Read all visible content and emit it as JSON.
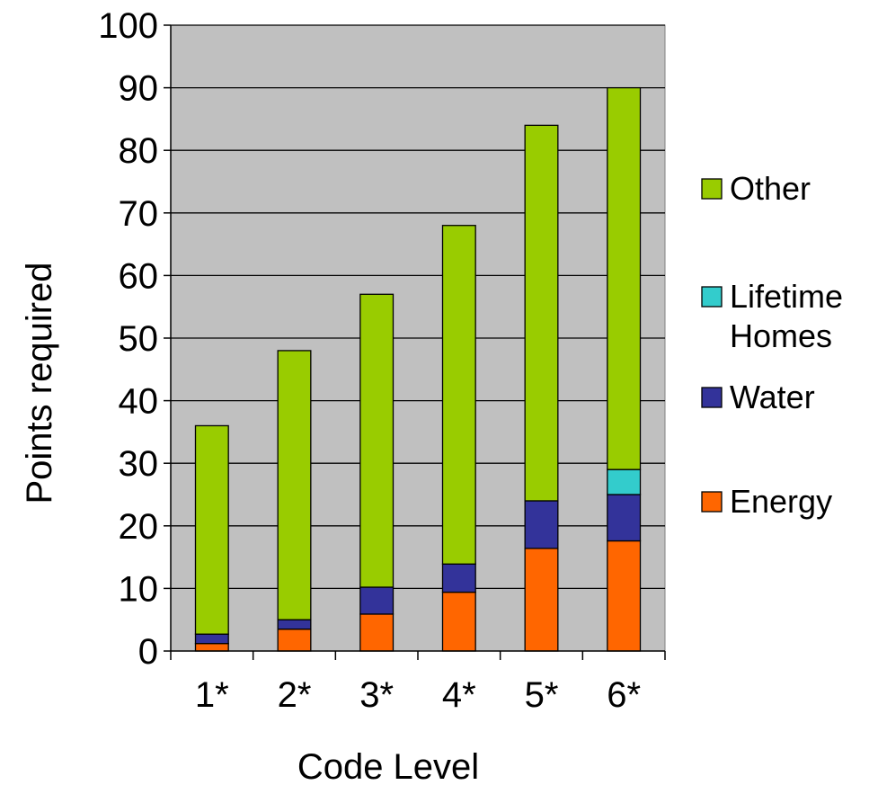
{
  "chart_data": {
    "type": "bar",
    "stacked": true,
    "categories": [
      "1*",
      "2*",
      "3*",
      "4*",
      "5*",
      "6*"
    ],
    "series": [
      {
        "name": "Energy",
        "color": "#ff6600",
        "values": [
          1.2,
          3.5,
          5.9,
          9.4,
          16.4,
          17.6
        ]
      },
      {
        "name": "Water",
        "color": "#33339a",
        "values": [
          1.5,
          1.5,
          4.3,
          4.5,
          7.6,
          7.4
        ]
      },
      {
        "name": "Lifetime Homes",
        "color": "#33cccc",
        "values": [
          0,
          0,
          0,
          0,
          0,
          4.0
        ]
      },
      {
        "name": "Other",
        "color": "#99cc00",
        "values": [
          33.3,
          43.0,
          46.8,
          54.1,
          60.0,
          61.0
        ]
      }
    ],
    "legend_order": [
      "Other",
      "Lifetime Homes",
      "Water",
      "Energy"
    ],
    "legend_placement": "right",
    "xlabel": "Code Level",
    "ylabel": "Points required",
    "ylim": [
      0,
      100
    ],
    "yticks": [
      "0",
      "10",
      "20",
      "30",
      "40",
      "50",
      "60",
      "70",
      "80",
      "90",
      "100"
    ],
    "grid": true,
    "plot_background": "#c0c0c0"
  }
}
